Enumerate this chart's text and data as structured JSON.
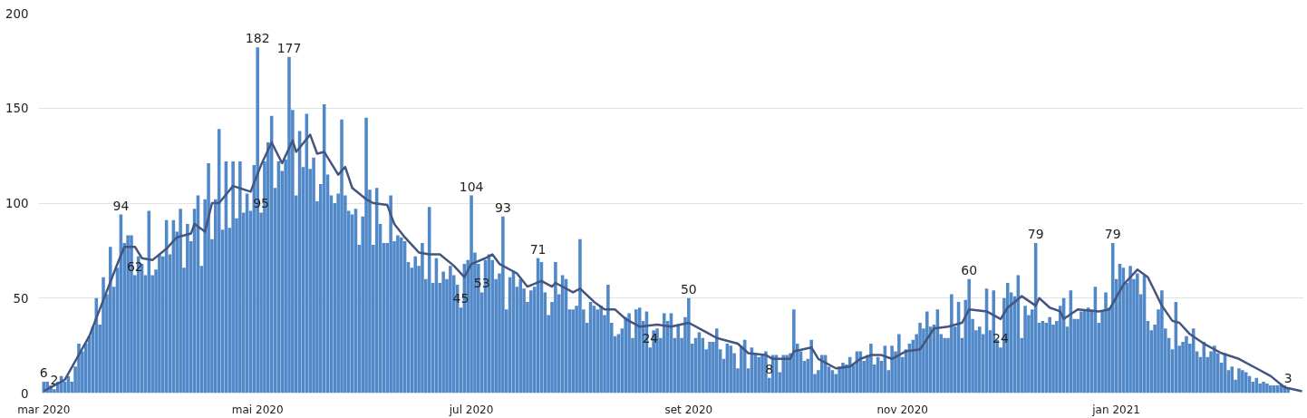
{
  "chart_data": {
    "type": "bar",
    "grid": "y",
    "xlim": [
      "2020-02-28T12:00",
      "2021-02-23T12:00"
    ],
    "xticks": [
      {
        "value": "2020-03-01",
        "label": "mar 2020"
      },
      {
        "value": "2020-05-01",
        "label": "mai 2020"
      },
      {
        "value": "2020-07-01",
        "label": "jul 2020"
      },
      {
        "value": "2020-09-01",
        "label": "set 2020"
      },
      {
        "value": "2020-11-01",
        "label": "nov 2020"
      },
      {
        "value": "2021-01-01",
        "label": "jan 2021"
      }
    ],
    "ylim": [
      0,
      200
    ],
    "yticks": [
      0,
      50,
      100,
      150,
      200
    ],
    "series": [
      {
        "color": "#5088c8",
        "x": [
          "2020-03-01",
          "2020-03-02",
          "2020-03-03",
          "2020-03-04",
          "2020-03-05",
          "2020-03-06",
          "2020-03-07",
          "2020-03-08",
          "2020-03-09",
          "2020-03-10",
          "2020-03-11",
          "2020-03-12",
          "2020-03-13",
          "2020-03-14",
          "2020-03-15",
          "2020-03-16",
          "2020-03-17",
          "2020-03-18",
          "2020-03-19",
          "2020-03-20",
          "2020-03-21",
          "2020-03-22",
          "2020-03-23",
          "2020-03-24",
          "2020-03-25",
          "2020-03-26",
          "2020-03-27",
          "2020-03-28",
          "2020-03-29",
          "2020-03-30",
          "2020-03-31",
          "2020-04-01",
          "2020-04-02",
          "2020-04-03",
          "2020-04-04",
          "2020-04-05",
          "2020-04-06",
          "2020-04-07",
          "2020-04-08",
          "2020-04-09",
          "2020-04-10",
          "2020-04-11",
          "2020-04-12",
          "2020-04-13",
          "2020-04-14",
          "2020-04-15",
          "2020-04-16",
          "2020-04-17",
          "2020-04-18",
          "2020-04-19",
          "2020-04-20",
          "2020-04-21",
          "2020-04-22",
          "2020-04-23",
          "2020-04-24",
          "2020-04-25",
          "2020-04-26",
          "2020-04-27",
          "2020-04-28",
          "2020-04-29",
          "2020-04-30",
          "2020-05-01",
          "2020-05-02",
          "2020-05-03",
          "2020-05-04",
          "2020-05-05",
          "2020-05-06",
          "2020-05-07",
          "2020-05-08",
          "2020-05-09",
          "2020-05-10",
          "2020-05-11",
          "2020-05-12",
          "2020-05-13",
          "2020-05-14",
          "2020-05-15",
          "2020-05-16",
          "2020-05-17",
          "2020-05-18",
          "2020-05-19",
          "2020-05-20",
          "2020-05-21",
          "2020-05-22",
          "2020-05-23",
          "2020-05-24",
          "2020-05-25",
          "2020-05-26",
          "2020-05-27",
          "2020-05-28",
          "2020-05-29",
          "2020-05-30",
          "2020-05-31",
          "2020-06-01",
          "2020-06-02",
          "2020-06-03",
          "2020-06-04",
          "2020-06-05",
          "2020-06-06",
          "2020-06-07",
          "2020-06-08",
          "2020-06-09",
          "2020-06-10",
          "2020-06-11",
          "2020-06-12",
          "2020-06-13",
          "2020-06-14",
          "2020-06-15",
          "2020-06-16",
          "2020-06-17",
          "2020-06-18",
          "2020-06-19",
          "2020-06-20",
          "2020-06-21",
          "2020-06-22",
          "2020-06-23",
          "2020-06-24",
          "2020-06-25",
          "2020-06-26",
          "2020-06-27",
          "2020-06-28",
          "2020-06-29",
          "2020-06-30",
          "2020-07-01",
          "2020-07-02",
          "2020-07-03",
          "2020-07-04",
          "2020-07-05",
          "2020-07-06",
          "2020-07-07",
          "2020-07-08",
          "2020-07-09",
          "2020-07-10",
          "2020-07-11",
          "2020-07-12",
          "2020-07-13",
          "2020-07-14",
          "2020-07-15",
          "2020-07-16",
          "2020-07-17",
          "2020-07-18",
          "2020-07-19",
          "2020-07-20",
          "2020-07-21",
          "2020-07-22",
          "2020-07-23",
          "2020-07-24",
          "2020-07-25",
          "2020-07-26",
          "2020-07-27",
          "2020-07-28",
          "2020-07-29",
          "2020-07-30",
          "2020-07-31",
          "2020-08-01",
          "2020-08-02",
          "2020-08-03",
          "2020-08-04",
          "2020-08-05",
          "2020-08-06",
          "2020-08-07",
          "2020-08-08",
          "2020-08-09",
          "2020-08-10",
          "2020-08-11",
          "2020-08-12",
          "2020-08-13",
          "2020-08-14",
          "2020-08-15",
          "2020-08-16",
          "2020-08-17",
          "2020-08-18",
          "2020-08-19",
          "2020-08-20",
          "2020-08-21",
          "2020-08-22",
          "2020-08-23",
          "2020-08-24",
          "2020-08-25",
          "2020-08-26",
          "2020-08-27",
          "2020-08-28",
          "2020-08-29",
          "2020-08-30",
          "2020-08-31",
          "2020-09-01",
          "2020-09-02",
          "2020-09-03",
          "2020-09-04",
          "2020-09-05",
          "2020-09-06",
          "2020-09-07",
          "2020-09-08",
          "2020-09-09",
          "2020-09-10",
          "2020-09-11",
          "2020-09-12",
          "2020-09-13",
          "2020-09-14",
          "2020-09-15",
          "2020-09-16",
          "2020-09-17",
          "2020-09-18",
          "2020-09-19",
          "2020-09-20",
          "2020-09-21",
          "2020-09-22",
          "2020-09-23",
          "2020-09-24",
          "2020-09-25",
          "2020-09-26",
          "2020-09-27",
          "2020-09-28",
          "2020-09-29",
          "2020-09-30",
          "2020-10-01",
          "2020-10-02",
          "2020-10-03",
          "2020-10-04",
          "2020-10-05",
          "2020-10-06",
          "2020-10-07",
          "2020-10-08",
          "2020-10-09",
          "2020-10-10",
          "2020-10-11",
          "2020-10-12",
          "2020-10-13",
          "2020-10-14",
          "2020-10-15",
          "2020-10-16",
          "2020-10-17",
          "2020-10-18",
          "2020-10-19",
          "2020-10-20",
          "2020-10-21",
          "2020-10-22",
          "2020-10-23",
          "2020-10-24",
          "2020-10-25",
          "2020-10-26",
          "2020-10-27",
          "2020-10-28",
          "2020-10-29",
          "2020-10-30",
          "2020-10-31",
          "2020-11-01",
          "2020-11-02",
          "2020-11-03",
          "2020-11-04",
          "2020-11-05",
          "2020-11-06",
          "2020-11-07",
          "2020-11-08",
          "2020-11-09",
          "2020-11-10",
          "2020-11-11",
          "2020-11-12",
          "2020-11-13",
          "2020-11-14",
          "2020-11-15",
          "2020-11-16",
          "2020-11-17",
          "2020-11-18",
          "2020-11-19",
          "2020-11-20",
          "2020-11-21",
          "2020-11-22",
          "2020-11-23",
          "2020-11-24",
          "2020-11-25",
          "2020-11-26",
          "2020-11-27",
          "2020-11-28",
          "2020-11-29",
          "2020-11-30",
          "2020-12-01",
          "2020-12-02",
          "2020-12-03",
          "2020-12-04",
          "2020-12-05",
          "2020-12-06",
          "2020-12-07",
          "2020-12-08",
          "2020-12-09",
          "2020-12-10",
          "2020-12-11",
          "2020-12-12",
          "2020-12-13",
          "2020-12-14",
          "2020-12-15",
          "2020-12-16",
          "2020-12-17",
          "2020-12-18",
          "2020-12-19",
          "2020-12-20",
          "2020-12-21",
          "2020-12-22",
          "2020-12-23",
          "2020-12-24",
          "2020-12-25",
          "2020-12-26",
          "2020-12-27",
          "2020-12-28",
          "2020-12-29",
          "2020-12-30",
          "2020-12-31",
          "2021-01-01",
          "2021-01-02",
          "2021-01-03",
          "2021-01-04",
          "2021-01-05",
          "2021-01-06",
          "2021-01-07",
          "2021-01-08",
          "2021-01-09",
          "2021-01-10",
          "2021-01-11",
          "2021-01-12",
          "2021-01-13",
          "2021-01-14",
          "2021-01-15",
          "2021-01-16",
          "2021-01-17",
          "2021-01-18",
          "2021-01-19",
          "2021-01-20",
          "2021-01-21",
          "2021-01-22",
          "2021-01-23",
          "2021-01-24",
          "2021-01-25",
          "2021-01-26",
          "2021-01-27",
          "2021-01-28",
          "2021-01-29",
          "2021-01-30",
          "2021-01-31",
          "2021-02-01",
          "2021-02-02",
          "2021-02-03",
          "2021-02-04",
          "2021-02-05",
          "2021-02-06",
          "2021-02-07",
          "2021-02-08",
          "2021-02-09",
          "2021-02-10",
          "2021-02-11",
          "2021-02-12",
          "2021-02-13",
          "2021-02-14",
          "2021-02-15",
          "2021-02-16",
          "2021-02-17",
          "2021-02-18",
          "2021-02-19"
        ],
        "values": [
          6,
          6,
          4,
          2,
          6,
          9,
          6,
          9,
          6,
          14,
          26,
          22,
          26,
          30,
          35,
          50,
          36,
          61,
          52,
          77,
          56,
          66,
          94,
          79,
          83,
          83,
          62,
          72,
          68,
          62,
          96,
          62,
          65,
          73,
          72,
          91,
          73,
          91,
          85,
          97,
          66,
          89,
          80,
          97,
          104,
          67,
          102,
          121,
          81,
          102,
          139,
          86,
          122,
          87,
          122,
          92,
          122,
          95,
          105,
          96,
          120,
          182,
          95,
          122,
          132,
          146,
          108,
          122,
          117,
          123,
          177,
          149,
          104,
          138,
          119,
          147,
          118,
          124,
          101,
          110,
          152,
          115,
          104,
          100,
          105,
          144,
          104,
          96,
          94,
          97,
          78,
          93,
          145,
          107,
          78,
          108,
          89,
          79,
          79,
          104,
          80,
          83,
          82,
          80,
          69,
          66,
          72,
          67,
          79,
          60,
          98,
          58,
          71,
          58,
          64,
          60,
          67,
          62,
          57,
          45,
          68,
          70,
          104,
          74,
          68,
          53,
          70,
          73,
          70,
          60,
          63,
          93,
          44,
          61,
          64,
          56,
          60,
          55,
          48,
          54,
          56,
          71,
          69,
          53,
          41,
          48,
          69,
          52,
          62,
          60,
          44,
          44,
          46,
          81,
          44,
          37,
          48,
          46,
          44,
          46,
          41,
          57,
          37,
          30,
          31,
          34,
          40,
          42,
          29,
          44,
          45,
          38,
          43,
          24,
          33,
          34,
          29,
          42,
          38,
          42,
          29,
          36,
          29,
          40,
          50,
          26,
          29,
          32,
          29,
          23,
          27,
          27,
          34,
          23,
          18,
          26,
          25,
          21,
          13,
          25,
          28,
          13,
          24,
          21,
          19,
          20,
          22,
          8,
          20,
          20,
          11,
          20,
          20,
          21,
          44,
          26,
          22,
          17,
          18,
          28,
          10,
          12,
          20,
          20,
          14,
          12,
          10,
          14,
          16,
          15,
          19,
          15,
          22,
          22,
          17,
          20,
          26,
          15,
          19,
          17,
          25,
          12,
          25,
          22,
          31,
          19,
          23,
          26,
          28,
          31,
          37,
          34,
          43,
          35,
          36,
          44,
          31,
          29,
          29,
          52,
          35,
          48,
          29,
          49,
          60,
          39,
          33,
          35,
          31,
          55,
          33,
          54,
          28,
          24,
          50,
          58,
          53,
          51,
          62,
          29,
          46,
          41,
          44,
          79,
          37,
          38,
          37,
          40,
          36,
          38,
          46,
          50,
          35,
          54,
          39,
          39,
          43,
          44,
          45,
          44,
          56,
          37,
          43,
          53,
          45,
          79,
          60,
          68,
          66,
          58,
          67,
          60,
          63,
          52,
          62,
          38,
          33,
          36,
          44,
          54,
          34,
          29,
          23,
          48,
          25,
          27,
          30,
          26,
          34,
          22,
          19,
          27,
          19,
          22,
          25,
          21,
          16,
          21,
          12,
          14,
          7,
          13,
          12,
          11,
          9,
          6,
          8,
          5,
          6,
          5,
          4,
          4,
          4,
          5,
          4,
          3
        ],
        "value_labels": [
          "6",
          null,
          null,
          "2",
          null,
          null,
          null,
          null,
          null,
          null,
          null,
          null,
          null,
          null,
          null,
          null,
          null,
          null,
          null,
          null,
          null,
          null,
          "94",
          null,
          null,
          null,
          "62",
          null,
          null,
          null,
          null,
          null,
          null,
          null,
          null,
          null,
          null,
          null,
          null,
          null,
          null,
          null,
          null,
          null,
          null,
          null,
          null,
          null,
          null,
          null,
          null,
          null,
          null,
          null,
          null,
          null,
          null,
          null,
          null,
          null,
          null,
          "182",
          "95",
          null,
          null,
          null,
          null,
          null,
          null,
          null,
          "177",
          null,
          null,
          null,
          null,
          null,
          null,
          null,
          null,
          null,
          null,
          null,
          null,
          null,
          null,
          null,
          null,
          null,
          null,
          null,
          null,
          null,
          null,
          null,
          null,
          null,
          null,
          null,
          null,
          null,
          null,
          null,
          null,
          null,
          null,
          null,
          null,
          null,
          null,
          null,
          null,
          null,
          null,
          null,
          null,
          null,
          null,
          null,
          null,
          "45",
          null,
          null,
          "104",
          null,
          null,
          "53",
          null,
          null,
          null,
          null,
          null,
          "93",
          null,
          null,
          null,
          null,
          null,
          null,
          null,
          null,
          null,
          "71",
          null,
          null,
          null,
          null,
          null,
          null,
          null,
          null,
          null,
          null,
          null,
          null,
          null,
          null,
          null,
          null,
          null,
          null,
          null,
          null,
          null,
          null,
          null,
          null,
          null,
          null,
          null,
          null,
          null,
          null,
          null,
          "24",
          null,
          null,
          null,
          null,
          null,
          null,
          null,
          null,
          null,
          null,
          "50",
          null,
          null,
          null,
          null,
          null,
          null,
          null,
          null,
          null,
          null,
          null,
          null,
          null,
          null,
          null,
          null,
          null,
          null,
          null,
          null,
          null,
          null,
          "8",
          null,
          null,
          null,
          null,
          null,
          null,
          null,
          null,
          null,
          null,
          null,
          null,
          null,
          null,
          null,
          null,
          null,
          null,
          null,
          null,
          null,
          null,
          null,
          null,
          null,
          null,
          null,
          null,
          null,
          null,
          null,
          null,
          null,
          null,
          null,
          null,
          null,
          null,
          null,
          null,
          null,
          null,
          null,
          null,
          null,
          null,
          null,
          null,
          null,
          null,
          null,
          null,
          null,
          null,
          null,
          null,
          "60",
          null,
          null,
          null,
          null,
          null,
          null,
          null,
          null,
          "24",
          null,
          null,
          null,
          null,
          null,
          null,
          null,
          null,
          null,
          "79",
          null,
          null,
          null,
          null,
          null,
          null,
          null,
          null,
          null,
          null,
          null,
          null,
          null,
          null,
          null,
          null,
          null,
          null,
          null,
          null,
          null,
          "79",
          null,
          null,
          null,
          null,
          null,
          null,
          null,
          null,
          null,
          null,
          null,
          null,
          null,
          null,
          null,
          null,
          null,
          null,
          null,
          null,
          null,
          null,
          null,
          null,
          null,
          null,
          null,
          null,
          null,
          null,
          null,
          null,
          null,
          null,
          null,
          null,
          null,
          null,
          null,
          null,
          null,
          null,
          null,
          null,
          null,
          null,
          null,
          null,
          null,
          "3"
        ]
      },
      {
        "type": "line",
        "color": "#44557f",
        "x": [
          "2020-03-01",
          "2020-03-07",
          "2020-03-14",
          "2020-03-18",
          "2020-03-22",
          "2020-03-24",
          "2020-03-27",
          "2020-03-29",
          "2020-04-01",
          "2020-04-05",
          "2020-04-08",
          "2020-04-12",
          "2020-04-13",
          "2020-04-16",
          "2020-04-18",
          "2020-04-20",
          "2020-04-24",
          "2020-04-29",
          "2020-05-02",
          "2020-05-05",
          "2020-05-08",
          "2020-05-11",
          "2020-05-12",
          "2020-05-16",
          "2020-05-18",
          "2020-05-20",
          "2020-05-24",
          "2020-05-26",
          "2020-05-28",
          "2020-06-01",
          "2020-06-03",
          "2020-06-07",
          "2020-06-09",
          "2020-06-12",
          "2020-06-16",
          "2020-06-19",
          "2020-06-22",
          "2020-06-26",
          "2020-06-29",
          "2020-07-01",
          "2020-07-05",
          "2020-07-07",
          "2020-07-09",
          "2020-07-14",
          "2020-07-17",
          "2020-07-21",
          "2020-07-24",
          "2020-07-25",
          "2020-07-30",
          "2020-08-01",
          "2020-08-05",
          "2020-08-08",
          "2020-08-11",
          "2020-08-14",
          "2020-08-18",
          "2020-08-23",
          "2020-08-27",
          "2020-09-01",
          "2020-09-06",
          "2020-09-09",
          "2020-09-15",
          "2020-09-18",
          "2020-09-23",
          "2020-09-25",
          "2020-09-30",
          "2020-10-01",
          "2020-10-06",
          "2020-10-08",
          "2020-10-13",
          "2020-10-17",
          "2020-10-20",
          "2020-10-23",
          "2020-10-26",
          "2020-10-29",
          "2020-11-02",
          "2020-11-06",
          "2020-11-10",
          "2020-11-14",
          "2020-11-18",
          "2020-11-20",
          "2020-11-25",
          "2020-11-29",
          "2020-12-01",
          "2020-12-05",
          "2020-12-09",
          "2020-12-10",
          "2020-12-13",
          "2020-12-16",
          "2020-12-17",
          "2020-12-21",
          "2020-12-27",
          "2020-12-30",
          "2021-01-03",
          "2021-01-07",
          "2021-01-10",
          "2021-01-14",
          "2021-01-17",
          "2021-01-19",
          "2021-01-22",
          "2021-01-26",
          "2021-01-31",
          "2021-02-05",
          "2021-02-10",
          "2021-02-14",
          "2021-02-18",
          "2021-02-23"
        ],
        "values": [
          1,
          7,
          30,
          49,
          68,
          77,
          77,
          71,
          70,
          76,
          82,
          84,
          89,
          85,
          100,
          100,
          109,
          106,
          120,
          132,
          121,
          133,
          127,
          136,
          126,
          127,
          115,
          119,
          108,
          102,
          100,
          99,
          89,
          82,
          74,
          73,
          73,
          67,
          61,
          68,
          71,
          73,
          68,
          63,
          56,
          59,
          56,
          58,
          53,
          55,
          48,
          44,
          44,
          39,
          35,
          36,
          35,
          37,
          32,
          29,
          26,
          21,
          20,
          18,
          18,
          22,
          24,
          18,
          13,
          14,
          18,
          20,
          20,
          18,
          22,
          23,
          34,
          35,
          37,
          44,
          43,
          39,
          45,
          51,
          46,
          50,
          45,
          43,
          39,
          44,
          43,
          44,
          57,
          65,
          61,
          46,
          38,
          37,
          31,
          26,
          21,
          18,
          13,
          9,
          3,
          1
        ]
      }
    ]
  }
}
